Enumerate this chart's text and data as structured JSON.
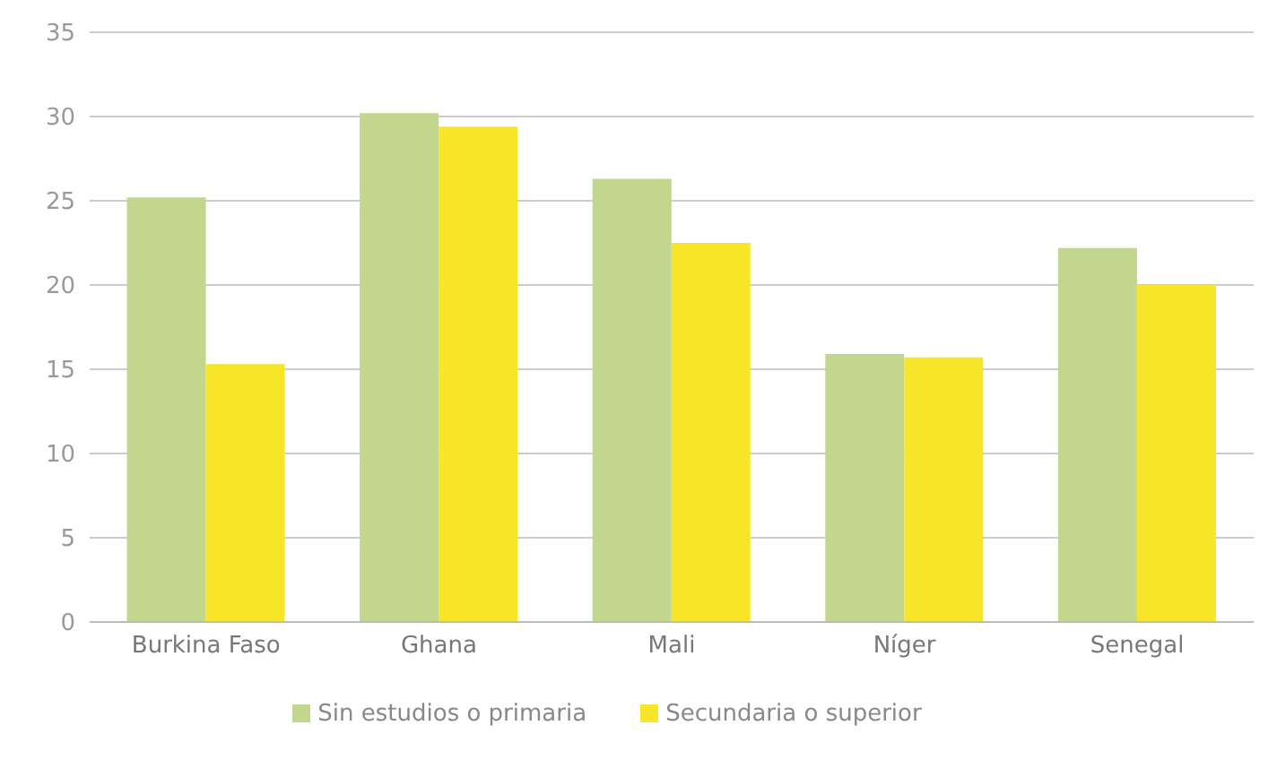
{
  "chart_data": {
    "type": "bar",
    "categories": [
      "Burkina Faso",
      "Ghana",
      "Mali",
      "Níger",
      "Senegal"
    ],
    "series": [
      {
        "name": "Sin estudios o primaria",
        "color": "#c2d68e",
        "values": [
          25.2,
          30.2,
          26.3,
          15.9,
          22.2
        ]
      },
      {
        "name": "Secundaria o superior",
        "color": "#f7e52a",
        "values": [
          15.3,
          29.4,
          22.5,
          15.7,
          20.0
        ]
      }
    ],
    "ylim": [
      0,
      35
    ],
    "yticks": [
      0,
      5,
      10,
      15,
      20,
      25,
      30,
      35
    ],
    "grid": "y",
    "legend": "bottom"
  }
}
